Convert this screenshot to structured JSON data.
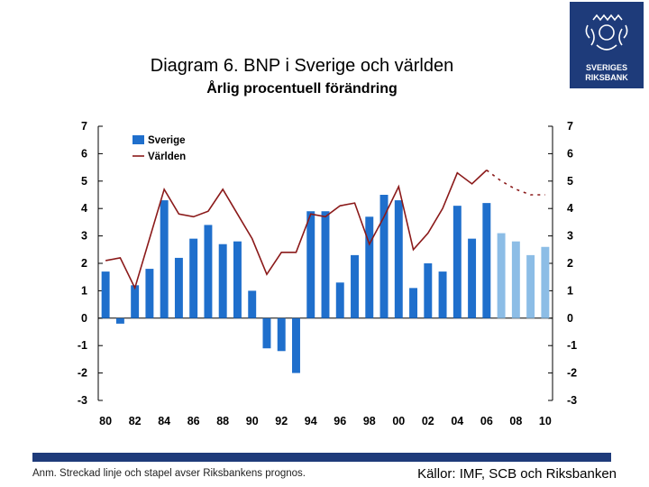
{
  "header": {
    "title": "Diagram 6. BNP i Sverige och världen",
    "subtitle": "Årlig procentuell förändring"
  },
  "logo": {
    "text_line1": "SVERIGES",
    "text_line2": "RIKSBANK",
    "icon": "crown-crest-icon"
  },
  "footer": {
    "note": "Anm. Streckad linje och stapel avser Riksbankens prognos.",
    "sources": "Källor: IMF, SCB och Riksbanken"
  },
  "colors": {
    "bar_actual": "#1f6fcc",
    "bar_forecast": "#8cbde6",
    "line_world": "#8b1a1a",
    "footer_bar": "#1e3b7a"
  },
  "chart_data": {
    "type": "bar",
    "title": "Diagram 6. BNP i Sverige och världen",
    "subtitle": "Årlig procentuell förändring",
    "ylim": [
      -3,
      7
    ],
    "y_ticks": [
      7,
      6,
      5,
      4,
      3,
      2,
      1,
      0,
      -1,
      -2,
      -3
    ],
    "x_tick_labels": [
      "80",
      "82",
      "84",
      "86",
      "88",
      "90",
      "92",
      "94",
      "96",
      "98",
      "00",
      "02",
      "04",
      "06",
      "08",
      "10"
    ],
    "years": [
      1980,
      1981,
      1982,
      1983,
      1984,
      1985,
      1986,
      1987,
      1988,
      1989,
      1990,
      1991,
      1992,
      1993,
      1994,
      1995,
      1996,
      1997,
      1998,
      1999,
      2000,
      2001,
      2002,
      2003,
      2004,
      2005,
      2006,
      2007,
      2008,
      2009,
      2010
    ],
    "forecast_from": 2007,
    "legend": {
      "position": "top-left",
      "entries": [
        "Sverige",
        "Världen"
      ]
    },
    "series": [
      {
        "name": "Sverige",
        "kind": "bar",
        "values": [
          1.7,
          -0.2,
          1.2,
          1.8,
          4.3,
          2.2,
          2.9,
          3.4,
          2.7,
          2.8,
          1.0,
          -1.1,
          -1.2,
          -2.0,
          3.9,
          3.9,
          1.3,
          2.3,
          3.7,
          4.5,
          4.3,
          1.1,
          2.0,
          1.7,
          4.1,
          2.9,
          4.2,
          3.1,
          2.8,
          2.3,
          2.6
        ]
      },
      {
        "name": "Världen",
        "kind": "line",
        "values": [
          2.1,
          2.2,
          1.1,
          2.9,
          4.7,
          3.8,
          3.7,
          3.9,
          4.7,
          3.8,
          2.9,
          1.6,
          2.4,
          2.4,
          3.8,
          3.7,
          4.1,
          4.2,
          2.7,
          3.7,
          4.8,
          2.5,
          3.1,
          4.0,
          5.3,
          4.9,
          5.4,
          5.0,
          4.7,
          4.5,
          4.5
        ]
      }
    ]
  }
}
